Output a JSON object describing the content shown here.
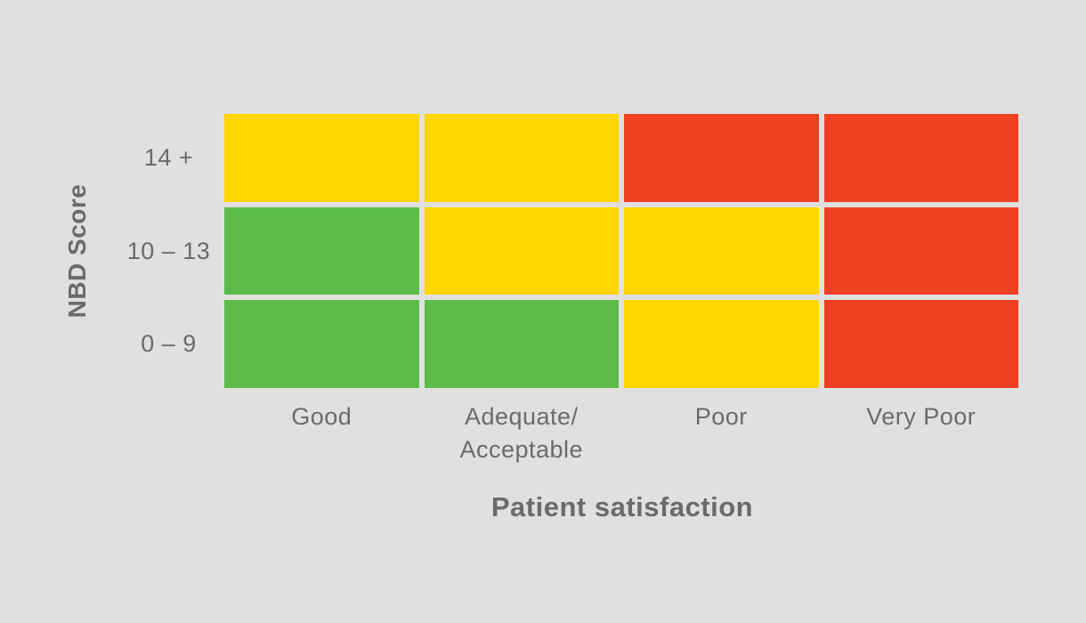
{
  "chart_data": {
    "type": "heatmap",
    "xlabel": "Patient satisfaction",
    "ylabel": "NBD Score",
    "x_categories": [
      "Good",
      "Adequate/\nAcceptable",
      "Poor",
      "Very Poor"
    ],
    "y_categories": [
      "14 +",
      "10 – 13",
      "0 – 9"
    ],
    "cells": [
      [
        "yellow",
        "yellow",
        "red",
        "red"
      ],
      [
        "green",
        "yellow",
        "yellow",
        "red"
      ],
      [
        "green",
        "green",
        "yellow",
        "red"
      ]
    ],
    "colors": {
      "green": "#5cbb49",
      "yellow": "#ffd600",
      "red": "#ee4023"
    },
    "background": "#e0e0e0",
    "text_color": "#6b6b6b",
    "legend": "none",
    "grid": "off"
  }
}
